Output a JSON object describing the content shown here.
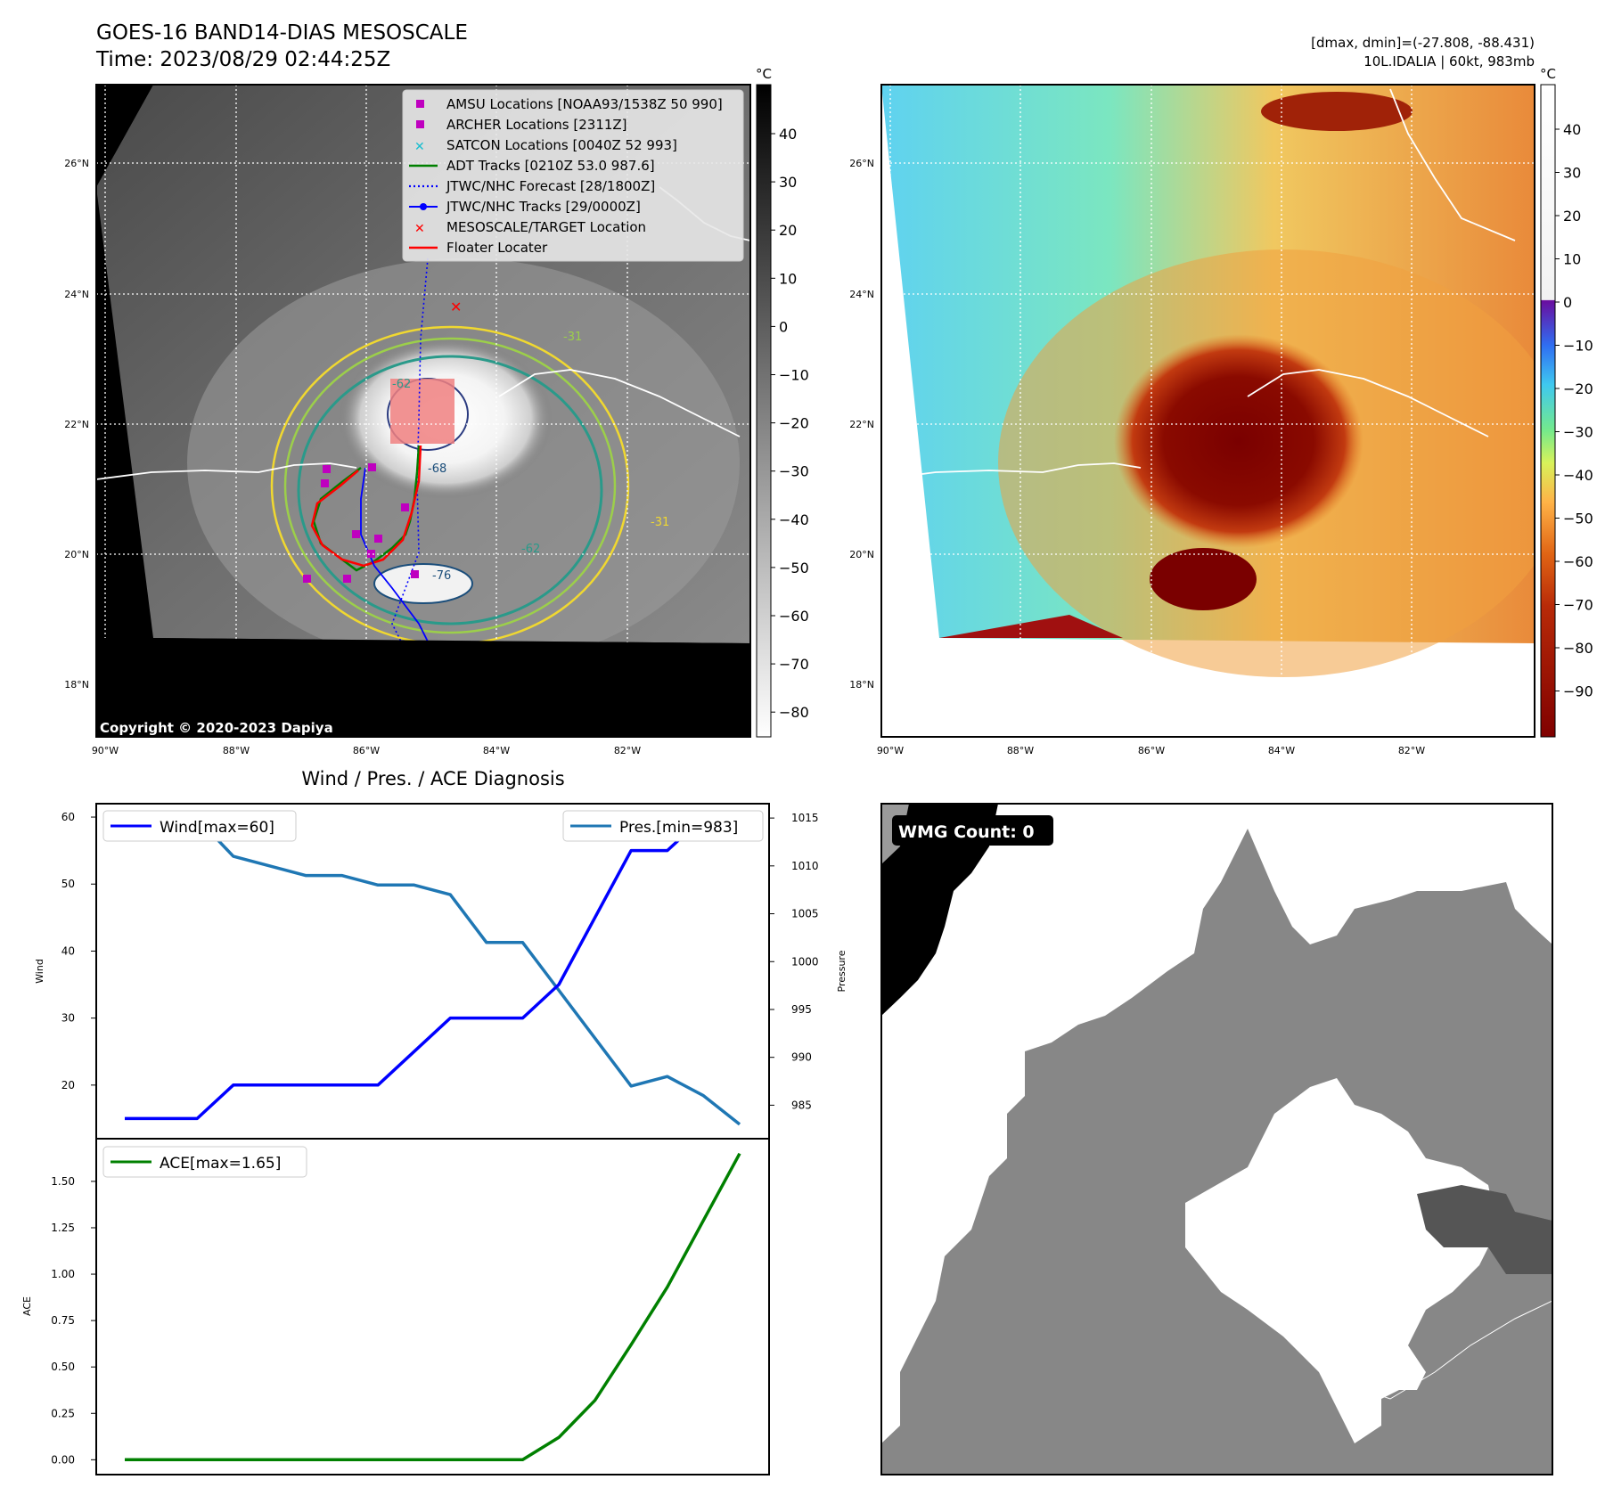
{
  "header": {
    "title_line1": "GOES-16 BAND14-DIAS MESOSCALE",
    "title_line2": "Time: 2023/08/29 02:44:25Z",
    "info_line1": "[dmax, dmin]=(-27.808, -88.431)",
    "info_line2": "10L.IDALIA | 60kt, 983mb"
  },
  "maps": {
    "lat_ticks": [
      "26°N",
      "24°N",
      "22°N",
      "20°N",
      "18°N"
    ],
    "lon_ticks": [
      "90°W",
      "88°W",
      "86°W",
      "84°W",
      "82°W"
    ],
    "copyright": "Copyright © 2020-2023 Dapiya",
    "contour_labels": [
      "-31",
      "-62",
      "-76",
      "-68",
      "-62",
      "-31"
    ],
    "gray_colorbar": {
      "unit": "°C",
      "ticks": [
        "40",
        "30",
        "20",
        "10",
        "0",
        "−10",
        "−20",
        "−30",
        "−40",
        "−50",
        "−60",
        "−70",
        "−80"
      ]
    },
    "color_colorbar": {
      "unit": "°C",
      "ticks": [
        "40",
        "30",
        "20",
        "10",
        "0",
        "−10",
        "−20",
        "−30",
        "−40",
        "−50",
        "−60",
        "−70",
        "−80",
        "−90"
      ]
    },
    "legend": [
      {
        "label": "AMSU Locations [NOAA93/1538Z 50 990]",
        "color": "#bf00bf",
        "marker": "square"
      },
      {
        "label": "ARCHER Locations [2311Z]",
        "color": "#bf00bf",
        "marker": "square"
      },
      {
        "label": "SATCON Locations [0040Z 52 993]",
        "color": "#17becf",
        "marker": "x"
      },
      {
        "label": "ADT Tracks [0210Z 53.0 987.6]",
        "color": "#008000",
        "marker": "line"
      },
      {
        "label": "JTWC/NHC Forecast [28/1800Z]",
        "color": "#0000ff",
        "marker": "dotted"
      },
      {
        "label": "JTWC/NHC Tracks [29/0000Z]",
        "color": "#0000ff",
        "marker": "line-dot"
      },
      {
        "label": "MESOSCALE/TARGET Location",
        "color": "#ff0000",
        "marker": "x"
      },
      {
        "label": "Floater Locater",
        "color": "#ff0000",
        "marker": "line"
      }
    ]
  },
  "diagnosis": {
    "title": "Wind / Pres. / ACE Diagnosis",
    "wind_ylabel": "Wind",
    "pressure_ylabel": "Pressure",
    "ace_ylabel": "ACE",
    "wind_ticks": [
      "60",
      "50",
      "40",
      "30",
      "20"
    ],
    "pressure_ticks": [
      "1015",
      "1010",
      "1005",
      "1000",
      "995",
      "990",
      "985"
    ],
    "ace_ticks": [
      "1.50",
      "1.25",
      "1.00",
      "0.75",
      "0.50",
      "0.25",
      "0.00"
    ],
    "wind_legend": "Wind[max=60]",
    "pressure_legend": "Pres.[min=983]",
    "ace_legend": "ACE[max=1.65]"
  },
  "wmg": {
    "badge": "WMG Count: 0"
  },
  "chart_data": [
    {
      "type": "line",
      "title": "Wind / Pres. / ACE Diagnosis",
      "ylabel": "Wind",
      "ylim": [
        12,
        62
      ],
      "series": [
        {
          "name": "Wind[max=60]",
          "color": "#0000ff",
          "x": [
            0,
            1,
            2,
            3,
            4,
            5,
            6,
            7,
            8,
            9,
            10,
            11,
            12,
            13,
            14,
            15,
            16,
            17
          ],
          "values": [
            15,
            15,
            15,
            20,
            20,
            20,
            20,
            20,
            25,
            30,
            30,
            30,
            35,
            45,
            55,
            55,
            60,
            60
          ]
        }
      ]
    },
    {
      "type": "line",
      "ylabel": "Pressure",
      "ylim": [
        981.5,
        1016.5
      ],
      "series": [
        {
          "name": "Pres.[min=983]",
          "color": "#1f77b4",
          "x": [
            0,
            1,
            2,
            3,
            4,
            5,
            6,
            7,
            8,
            9,
            10,
            11,
            12,
            13,
            14,
            15,
            16,
            17
          ],
          "values": [
            1015,
            1015,
            1015,
            1011,
            1010,
            1009,
            1009,
            1008,
            1008,
            1007,
            1002,
            1002,
            997,
            992,
            987,
            988,
            986,
            983
          ]
        }
      ]
    },
    {
      "type": "line",
      "ylabel": "ACE",
      "ylim": [
        -0.08,
        1.73
      ],
      "series": [
        {
          "name": "ACE[max=1.65]",
          "color": "#008000",
          "x": [
            0,
            1,
            2,
            3,
            4,
            5,
            6,
            7,
            8,
            9,
            10,
            11,
            12,
            13,
            14,
            15,
            16,
            17
          ],
          "values": [
            0,
            0,
            0,
            0,
            0,
            0,
            0,
            0,
            0,
            0,
            0,
            0,
            0.12,
            0.32,
            0.62,
            0.93,
            1.29,
            1.65
          ]
        }
      ]
    }
  ]
}
